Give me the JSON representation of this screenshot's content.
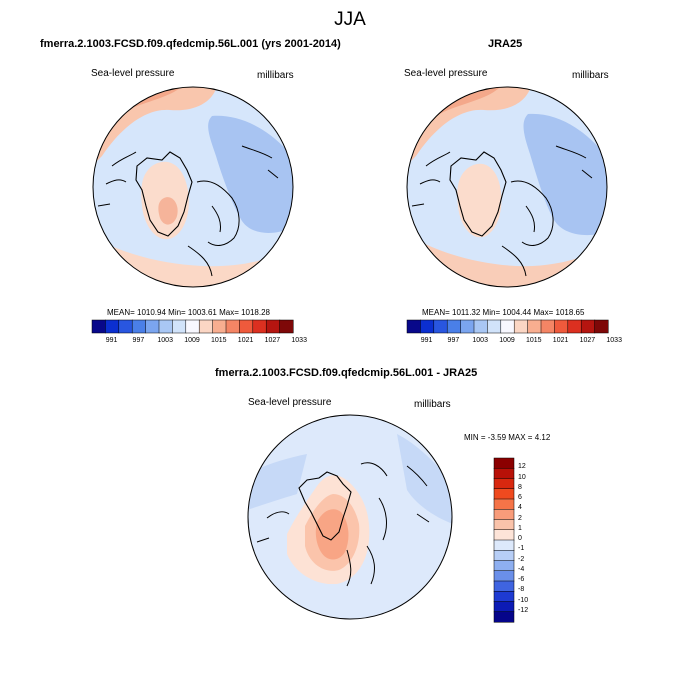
{
  "figure": {
    "title": "JJA"
  },
  "panels": {
    "model": {
      "title": "fmerra.2.1003.FCSD.f09.qfedcmip.56L.001 (yrs 2001-2014)",
      "left_label": "Sea-level pressure",
      "right_label": "millibars",
      "stats": "MEAN= 1010.94  Min= 1003.61  Max= 1018.28"
    },
    "obs": {
      "title": "JRA25",
      "left_label": "Sea-level pressure",
      "right_label": "millibars",
      "stats": "MEAN= 1011.32  Min= 1004.44  Max= 1018.65"
    },
    "diff": {
      "title": "fmerra.2.1003.FCSD.f09.qfedcmip.56L.001 - JRA25",
      "left_label": "Sea-level pressure",
      "right_label": "millibars",
      "stats": "MIN =  -3.59 MAX =   4.12"
    }
  },
  "colorbars": {
    "abs": {
      "tick_labels": [
        "991",
        "997",
        "1003",
        "1009",
        "1015",
        "1021",
        "1027",
        "1033"
      ],
      "colors": [
        "#08088a",
        "#0b2fd0",
        "#2956e0",
        "#4a7fe8",
        "#7ba5ef",
        "#a9c7f4",
        "#d1e3fa",
        "#f8f8ff",
        "#fbd6c4",
        "#f8ae90",
        "#f48565",
        "#ef5a3c",
        "#dc3020",
        "#b51510",
        "#7e0808"
      ]
    },
    "diff": {
      "tick_labels": [
        "12",
        "10",
        "8",
        "6",
        "4",
        "2",
        "1",
        "0",
        "-1",
        "-2",
        "-4",
        "-6",
        "-8",
        "-10",
        "-12"
      ],
      "colors": [
        "#8b0000",
        "#b81108",
        "#d8280f",
        "#ef4a1f",
        "#f57448",
        "#f89c7a",
        "#fac3aa",
        "#fde4d8",
        "#dde9fb",
        "#b7cef6",
        "#8eaff0",
        "#6a8fe9",
        "#3f64e1",
        "#1e3ad2",
        "#0c1bb5",
        "#05058a"
      ]
    }
  },
  "chart_data": [
    {
      "type": "heatmap",
      "title": "fmerra.2.1003.FCSD.f09.qfedcmip.56L.001 (yrs 2001-2014)",
      "variable": "Sea-level pressure",
      "units": "millibars",
      "projection": "polar stereographic (north)",
      "stats": {
        "mean": 1010.94,
        "min": 1003.61,
        "max": 1018.28
      },
      "colorbar_ticks": [
        991,
        997,
        1003,
        1009,
        1015,
        1021,
        1027,
        1033
      ]
    },
    {
      "type": "heatmap",
      "title": "JRA25",
      "variable": "Sea-level pressure",
      "units": "millibars",
      "projection": "polar stereographic (north)",
      "stats": {
        "mean": 1011.32,
        "min": 1004.44,
        "max": 1018.65
      },
      "colorbar_ticks": [
        991,
        997,
        1003,
        1009,
        1015,
        1021,
        1027,
        1033
      ]
    },
    {
      "type": "heatmap",
      "title": "fmerra.2.1003.FCSD.f09.qfedcmip.56L.001 - JRA25",
      "variable": "Sea-level pressure",
      "units": "millibars",
      "projection": "polar stereographic (north)",
      "stats": {
        "min": -3.59,
        "max": 4.12
      },
      "colorbar_ticks": [
        12,
        10,
        8,
        6,
        4,
        2,
        1,
        0,
        -1,
        -2,
        -4,
        -6,
        -8,
        -10,
        -12
      ]
    }
  ]
}
